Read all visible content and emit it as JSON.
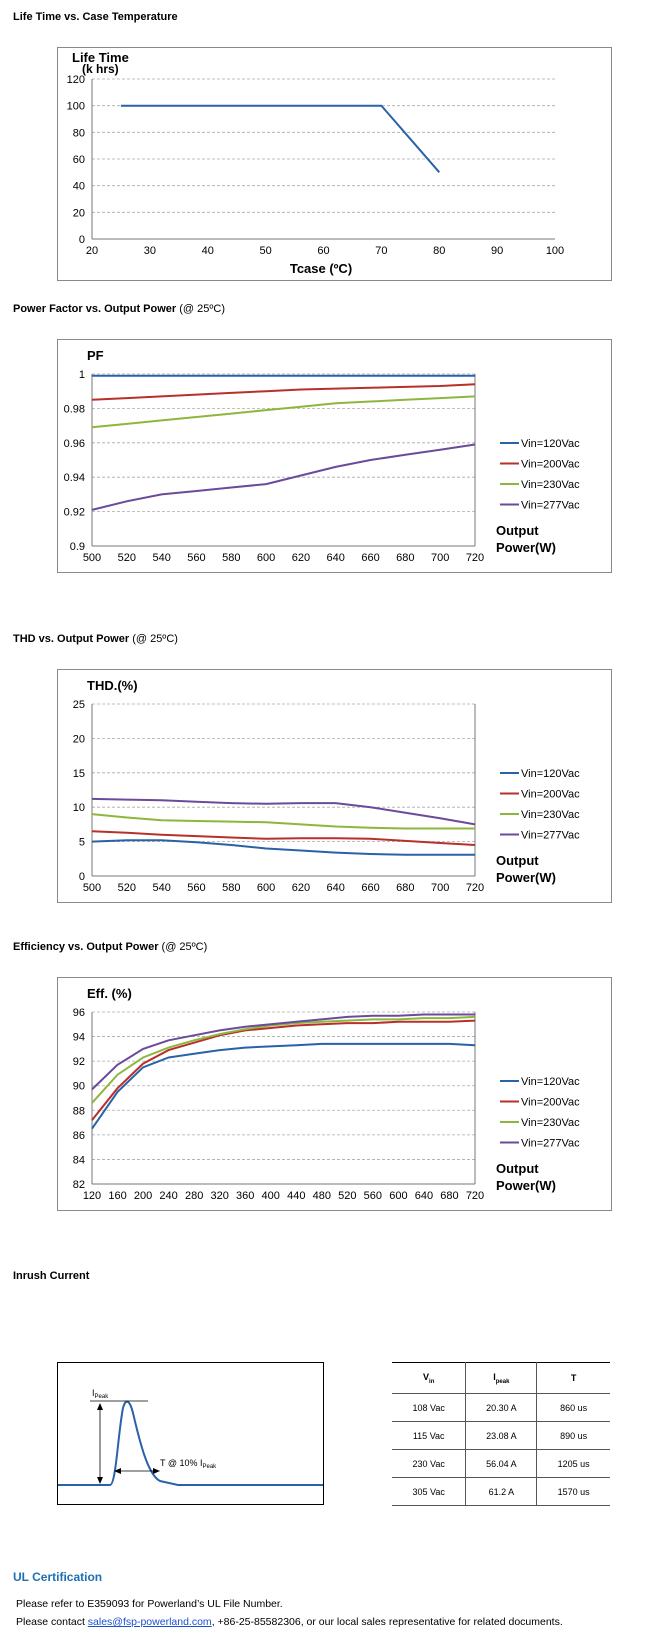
{
  "sections": {
    "life": {
      "title": "Life Time vs. Case Temperature"
    },
    "pf": {
      "title": "Power Factor vs. Output Power",
      "note": "(@ 25ºC)"
    },
    "thd": {
      "title": "THD vs. Output Power",
      "note": "(@ 25ºC)"
    },
    "eff": {
      "title": "Efficiency vs. Output Power",
      "note": "(@ 25ºC)"
    },
    "inrush": {
      "title": "Inrush Current"
    }
  },
  "colors": {
    "blue": "#2a62a8",
    "red": "#b8302a",
    "green": "#8db73c",
    "purple": "#6b4a9b",
    "grid": "#aaaaaa"
  },
  "chart_data": [
    {
      "type": "line",
      "title": "",
      "ylabel_line1": "Life Time",
      "ylabel_line2": "(k hrs)",
      "xlabel": "Tcase (ºC)",
      "xlim": [
        20,
        100
      ],
      "ylim": [
        0,
        120
      ],
      "xticks": [
        20,
        30,
        40,
        50,
        60,
        70,
        80,
        90,
        100
      ],
      "yticks": [
        0,
        20,
        40,
        60,
        80,
        100,
        120
      ],
      "series": [
        {
          "color": "#2a62a8",
          "x": [
            25,
            70,
            80
          ],
          "y": [
            100,
            100,
            50
          ]
        }
      ]
    },
    {
      "type": "line",
      "ylabel": "PF",
      "xlabel_line1": "Output",
      "xlabel_line2": "Power(W)",
      "xlim": [
        500,
        720
      ],
      "ylim": [
        0.9,
        1
      ],
      "xticks": [
        500,
        520,
        540,
        560,
        580,
        600,
        620,
        640,
        660,
        680,
        700,
        720
      ],
      "yticks": [
        0.9,
        0.92,
        0.94,
        0.96,
        0.98,
        1
      ],
      "ytick_labels": [
        "0.9",
        "0.92",
        "0.94",
        "0.96",
        "0.98",
        "1"
      ],
      "x": [
        500,
        520,
        540,
        560,
        580,
        600,
        620,
        640,
        660,
        680,
        700,
        720
      ],
      "series": [
        {
          "name": "Vin=120Vac",
          "color": "#2a62a8",
          "values": [
            0.999,
            0.999,
            0.999,
            0.999,
            0.999,
            0.999,
            0.999,
            0.999,
            0.999,
            0.999,
            0.999,
            0.999
          ]
        },
        {
          "name": "Vin=200Vac",
          "color": "#b8302a",
          "values": [
            0.985,
            0.986,
            0.987,
            0.988,
            0.989,
            0.99,
            0.991,
            0.9915,
            0.992,
            0.9925,
            0.993,
            0.994
          ]
        },
        {
          "name": "Vin=230Vac",
          "color": "#8db73c",
          "values": [
            0.969,
            0.971,
            0.973,
            0.975,
            0.977,
            0.979,
            0.981,
            0.983,
            0.984,
            0.985,
            0.986,
            0.987
          ]
        },
        {
          "name": "Vin=277Vac",
          "color": "#6b4a9b",
          "values": [
            0.921,
            0.926,
            0.93,
            0.932,
            0.934,
            0.936,
            0.941,
            0.946,
            0.95,
            0.953,
            0.956,
            0.959
          ]
        }
      ]
    },
    {
      "type": "line",
      "ylabel": "THD.(%)",
      "xlabel_line1": "Output",
      "xlabel_line2": "Power(W)",
      "xlim": [
        500,
        720
      ],
      "ylim": [
        0,
        25
      ],
      "xticks": [
        500,
        520,
        540,
        560,
        580,
        600,
        620,
        640,
        660,
        680,
        700,
        720
      ],
      "yticks": [
        0,
        5,
        10,
        15,
        20,
        25
      ],
      "x": [
        500,
        520,
        540,
        560,
        580,
        600,
        620,
        640,
        660,
        680,
        700,
        720
      ],
      "series": [
        {
          "name": "Vin=120Vac",
          "color": "#2a62a8",
          "values": [
            5.0,
            5.2,
            5.2,
            4.9,
            4.5,
            4.0,
            3.7,
            3.4,
            3.2,
            3.1,
            3.1,
            3.1
          ]
        },
        {
          "name": "Vin=200Vac",
          "color": "#b8302a",
          "values": [
            6.5,
            6.3,
            6.0,
            5.8,
            5.6,
            5.4,
            5.5,
            5.5,
            5.4,
            5.1,
            4.8,
            4.5
          ]
        },
        {
          "name": "Vin=230Vac",
          "color": "#8db73c",
          "values": [
            9.0,
            8.5,
            8.1,
            8.0,
            7.9,
            7.8,
            7.5,
            7.2,
            7.0,
            6.9,
            6.9,
            6.9
          ]
        },
        {
          "name": "Vin=277Vac",
          "color": "#6b4a9b",
          "values": [
            11.2,
            11.1,
            11.0,
            10.8,
            10.6,
            10.5,
            10.6,
            10.6,
            10.0,
            9.2,
            8.4,
            7.5
          ]
        }
      ]
    },
    {
      "type": "line",
      "ylabel": "Eff. (%)",
      "xlabel_line1": "Output",
      "xlabel_line2": "Power(W)",
      "xlim": [
        120,
        720
      ],
      "ylim": [
        82,
        96
      ],
      "xticks": [
        120,
        160,
        200,
        240,
        280,
        320,
        360,
        400,
        440,
        480,
        520,
        560,
        600,
        640,
        680,
        720
      ],
      "yticks": [
        82,
        84,
        86,
        88,
        90,
        92,
        94,
        96
      ],
      "x": [
        120,
        160,
        200,
        240,
        280,
        320,
        360,
        400,
        440,
        480,
        520,
        560,
        600,
        640,
        680,
        720
      ],
      "series": [
        {
          "name": "Vin=120Vac",
          "color": "#2a62a8",
          "values": [
            86.5,
            89.5,
            91.5,
            92.3,
            92.6,
            92.9,
            93.1,
            93.2,
            93.3,
            93.4,
            93.4,
            93.4,
            93.4,
            93.4,
            93.4,
            93.3
          ]
        },
        {
          "name": "Vin=200Vac",
          "color": "#b8302a",
          "values": [
            87.2,
            89.8,
            91.8,
            92.9,
            93.5,
            94.1,
            94.5,
            94.7,
            94.9,
            95.0,
            95.1,
            95.1,
            95.2,
            95.2,
            95.2,
            95.3
          ]
        },
        {
          "name": "Vin=230Vac",
          "color": "#8db73c",
          "values": [
            88.6,
            90.9,
            92.3,
            93.1,
            93.7,
            94.2,
            94.6,
            94.9,
            95.1,
            95.2,
            95.3,
            95.4,
            95.4,
            95.5,
            95.5,
            95.6
          ]
        },
        {
          "name": "Vin=277Vac",
          "color": "#6b4a9b",
          "values": [
            89.7,
            91.7,
            93.0,
            93.7,
            94.1,
            94.5,
            94.8,
            95.0,
            95.2,
            95.4,
            95.6,
            95.7,
            95.7,
            95.8,
            95.8,
            95.8
          ]
        }
      ]
    }
  ],
  "inrush_diagram": {
    "peak_label": "I",
    "peak_sub": "Peak",
    "t_label": "T @ 10% I",
    "t_sub": "Peak"
  },
  "inrush_table": {
    "headers": [
      {
        "main": "V",
        "sub": "in"
      },
      {
        "main": "I",
        "sub": "peak"
      },
      {
        "main": "T",
        "sub": ""
      }
    ],
    "rows": [
      [
        "108 Vac",
        "20.30 A",
        "860 us"
      ],
      [
        "115 Vac",
        "23.08 A",
        "890 us"
      ],
      [
        "230 Vac",
        "56.04 A",
        "1205 us"
      ],
      [
        "305 Vac",
        "61.2 A",
        "1570 us"
      ]
    ]
  },
  "ul": {
    "title": "UL Certification",
    "line1": "Please refer to E359093 for Powerland’s UL File Number.",
    "line2_pre": "Please contact ",
    "email": "sales@fsp-powerland.com",
    "line2_post": ", +86-25-85582306, or our local sales representative for related documents."
  }
}
